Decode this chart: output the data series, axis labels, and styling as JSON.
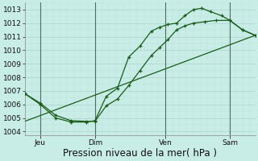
{
  "xlabel": "Pression niveau de la mer( hPa )",
  "bg_color": "#c8ece6",
  "grid_major_color": "#aad4cc",
  "grid_minor_color": "#bde0da",
  "line_color": "#1a5c1a",
  "ylim": [
    1003.75,
    1013.5
  ],
  "xlim": [
    0,
    8.2
  ],
  "yticks": [
    1004,
    1005,
    1006,
    1007,
    1008,
    1009,
    1010,
    1011,
    1012,
    1013
  ],
  "xtick_pos": [
    0.55,
    2.5,
    5.0,
    7.3
  ],
  "xtick_labels": [
    "Jeu",
    "Dim",
    "Ven",
    "Sam"
  ],
  "vline_x": [
    0.55,
    2.5,
    5.0,
    7.3
  ],
  "line1_x": [
    0.0,
    0.55,
    1.1,
    1.65,
    2.2,
    2.5,
    2.9,
    3.3,
    3.7,
    4.1,
    4.5,
    4.8,
    5.1,
    5.4,
    5.7,
    6.0,
    6.4,
    6.8,
    7.3,
    7.75,
    8.2
  ],
  "line1_y": [
    1006.8,
    1006.1,
    1005.2,
    1004.8,
    1004.75,
    1004.75,
    1005.9,
    1006.4,
    1007.4,
    1008.5,
    1009.6,
    1010.2,
    1010.8,
    1011.5,
    1011.8,
    1012.0,
    1012.1,
    1012.2,
    1012.2,
    1011.5,
    1011.1
  ],
  "line2_x": [
    0.0,
    0.55,
    1.1,
    1.65,
    2.2,
    2.5,
    2.9,
    3.3,
    3.7,
    4.1,
    4.5,
    4.8,
    5.1,
    5.4,
    5.7,
    6.0,
    6.3,
    6.6,
    7.0,
    7.3,
    7.75,
    8.2
  ],
  "line2_y": [
    1006.8,
    1006.0,
    1005.0,
    1004.7,
    1004.7,
    1004.8,
    1006.6,
    1007.2,
    1009.5,
    1010.3,
    1011.4,
    1011.7,
    1011.9,
    1012.0,
    1012.55,
    1013.0,
    1013.1,
    1012.85,
    1012.55,
    1012.2,
    1011.5,
    1011.1
  ],
  "line3_x": [
    0.0,
    8.2
  ],
  "line3_y": [
    1004.75,
    1011.1
  ],
  "marker_size": 3.0,
  "line_width": 0.9,
  "font_size_ticks": 6.5,
  "font_size_xlabel": 8.5
}
